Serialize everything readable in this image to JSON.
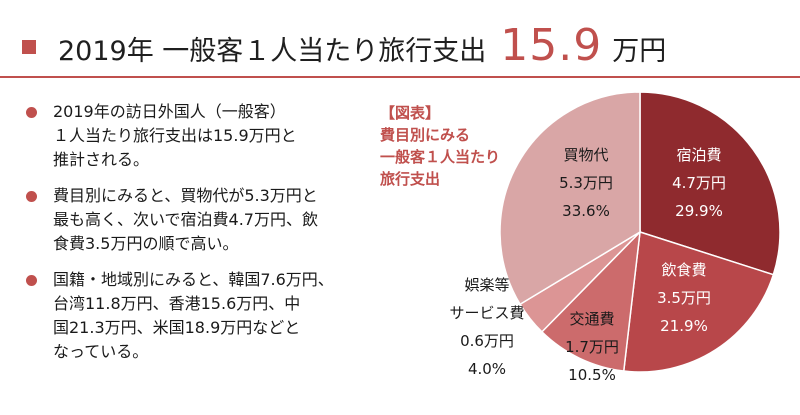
{
  "title": {
    "prefix": "2019年 一般客１人当たり旅行支出",
    "amount": "15.9",
    "unit": "万円"
  },
  "bullets": [
    "2019年の訪日外国人（一般客）\n１人当たり旅行支出は15.9万円と\n推計される。",
    "費目別にみると、買物代が5.3万円と\n最も高く、次いで宿泊費4.7万円、飲\n食費3.5万円の順で高い。",
    "国籍・地域別にみると、韓国7.6万円、\n台湾11.8万円、香港15.6万円、中\n国21.3万円、米国18.9万円などと\nなっている。"
  ],
  "caption": "【図表】\n費目別にみる\n一般客１人当たり\n旅行支出",
  "colors": {
    "accent": "#c0504d",
    "slices": [
      "#8f2a2e",
      "#b8474a",
      "#cc6b6c",
      "#dc9595",
      "#d9a6a6"
    ]
  },
  "chart_data": {
    "type": "pie",
    "title": "",
    "start_angle": "12 o'clock",
    "direction": "clockwise",
    "slices": [
      {
        "label": "宿泊費",
        "value_text": "4.7万円",
        "value": 4.7,
        "percent_text": "29.9%",
        "percent": 29.9
      },
      {
        "label": "飲食費",
        "value_text": "3.5万円",
        "value": 3.5,
        "percent_text": "21.9%",
        "percent": 21.9
      },
      {
        "label": "交通費",
        "value_text": "1.7万円",
        "value": 1.7,
        "percent_text": "10.5%",
        "percent": 10.5
      },
      {
        "label": "娯楽等\nサービス費",
        "value_text": "0.6万円",
        "value": 0.6,
        "percent_text": "4.0%",
        "percent": 4.0
      },
      {
        "label": "買物代",
        "value_text": "5.3万円",
        "value": 5.3,
        "percent_text": "33.6%",
        "percent": 33.6
      }
    ]
  }
}
